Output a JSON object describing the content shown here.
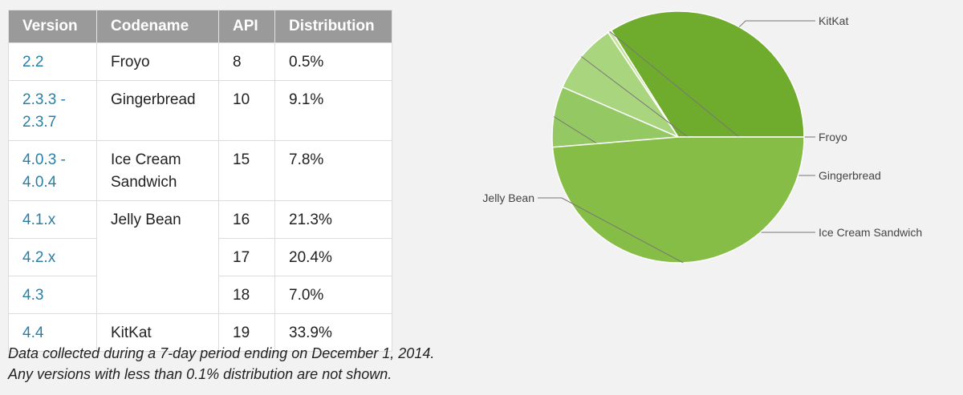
{
  "table": {
    "headers": [
      "Version",
      "Codename",
      "API",
      "Distribution"
    ],
    "rows": [
      {
        "version": [
          "2.2"
        ],
        "codename": [
          "Froyo"
        ],
        "api": "8",
        "distribution": "0.5%"
      },
      {
        "version": [
          "2.3.3 -",
          "2.3.7"
        ],
        "codename": [
          "Gingerbread"
        ],
        "api": "10",
        "distribution": "9.1%"
      },
      {
        "version": [
          "4.0.3 -",
          "4.0.4"
        ],
        "codename": [
          "Ice Cream",
          "Sandwich"
        ],
        "api": "15",
        "distribution": "7.8%"
      },
      {
        "version": [
          "4.1.x"
        ],
        "codename": [
          "Jelly Bean"
        ],
        "api": "16",
        "distribution": "21.3%"
      },
      {
        "version": [
          "4.2.x"
        ],
        "codename": [],
        "api": "17",
        "distribution": "20.4%"
      },
      {
        "version": [
          "4.3"
        ],
        "codename": [],
        "api": "18",
        "distribution": "7.0%"
      },
      {
        "version": [
          "4.4"
        ],
        "codename": [
          "KitKat"
        ],
        "api": "19",
        "distribution": "33.9%"
      }
    ]
  },
  "note": {
    "line1": "Data collected during a 7-day period ending on December 1, 2014.",
    "line2": "Any versions with less than 0.1% distribution are not shown."
  },
  "chart_data": {
    "type": "pie",
    "title": "",
    "slices": [
      {
        "label": "KitKat",
        "value": 33.9,
        "color": "#6fab2c"
      },
      {
        "label": "Froyo",
        "value": 0.5,
        "color": "#c6e49c"
      },
      {
        "label": "Gingerbread",
        "value": 9.1,
        "color": "#a9d57e"
      },
      {
        "label": "Ice Cream Sandwich",
        "value": 7.8,
        "color": "#93c862"
      },
      {
        "label": "Jelly Bean",
        "value": 48.7,
        "color": "#86bd47"
      }
    ],
    "start": "3 o'clock",
    "direction": "counter-clockwise",
    "colors": {
      "stroke": "#ffffff",
      "leader": "#777777",
      "label": "#444444"
    }
  }
}
